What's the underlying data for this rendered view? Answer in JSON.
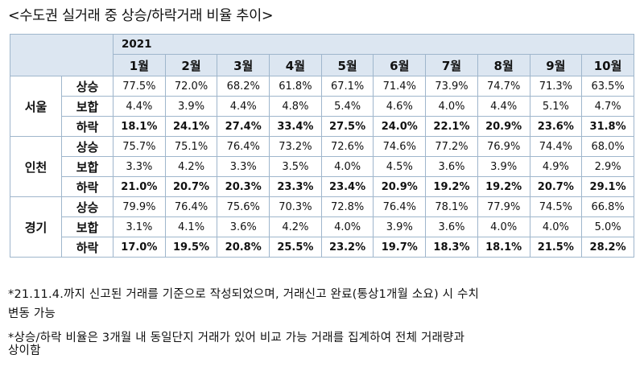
{
  "title": "<수도권 실거래 중 상승/하락거래 비율 추이>",
  "year": "2021",
  "months": [
    "1월",
    "2월",
    "3월",
    "4월",
    "5월",
    "6월",
    "7월",
    "8월",
    "9월",
    "10월"
  ],
  "regions": [
    {
      "name": "서울",
      "rows": [
        {
          "label": "상승",
          "values": [
            "77.5%",
            "72.0%",
            "68.2%",
            "61.8%",
            "67.1%",
            "71.4%",
            "73.9%",
            "74.7%",
            "71.3%",
            "63.5%"
          ]
        },
        {
          "label": "보합",
          "values": [
            "4.4%",
            "3.9%",
            "4.4%",
            "4.8%",
            "5.4%",
            "4.6%",
            "4.0%",
            "4.4%",
            "5.1%",
            "4.7%"
          ]
        },
        {
          "label": "하락",
          "values": [
            "18.1%",
            "24.1%",
            "27.4%",
            "33.4%",
            "27.5%",
            "24.0%",
            "22.1%",
            "20.9%",
            "23.6%",
            "31.8%"
          ]
        }
      ]
    },
    {
      "name": "인천",
      "rows": [
        {
          "label": "상승",
          "values": [
            "75.7%",
            "75.1%",
            "76.4%",
            "73.2%",
            "72.6%",
            "74.6%",
            "77.2%",
            "76.9%",
            "74.4%",
            "68.0%"
          ]
        },
        {
          "label": "보합",
          "values": [
            "3.3%",
            "4.2%",
            "3.3%",
            "3.5%",
            "4.0%",
            "4.5%",
            "3.6%",
            "3.9%",
            "4.9%",
            "2.9%"
          ]
        },
        {
          "label": "하락",
          "values": [
            "21.0%",
            "20.7%",
            "20.3%",
            "23.3%",
            "23.4%",
            "20.9%",
            "19.2%",
            "19.2%",
            "20.7%",
            "29.1%"
          ]
        }
      ]
    },
    {
      "name": "경기",
      "rows": [
        {
          "label": "상승",
          "values": [
            "79.9%",
            "76.4%",
            "75.6%",
            "70.3%",
            "72.8%",
            "76.4%",
            "78.1%",
            "77.9%",
            "74.5%",
            "66.8%"
          ]
        },
        {
          "label": "보합",
          "values": [
            "3.1%",
            "4.1%",
            "3.6%",
            "4.2%",
            "4.0%",
            "3.9%",
            "3.6%",
            "4.0%",
            "4.0%",
            "5.0%"
          ]
        },
        {
          "label": "하락",
          "values": [
            "17.0%",
            "19.5%",
            "20.8%",
            "25.5%",
            "23.2%",
            "19.7%",
            "18.3%",
            "18.1%",
            "21.5%",
            "28.2%"
          ]
        }
      ]
    }
  ],
  "notes": [
    "*21.11.4.까지 신고된 거래를 기준으로 작성되었으며, 거래신고 완료(통상1개월 소요) 시 수치",
    " 변동 가능",
    "*상승/하락 비율은 3개월 내 동일단지 거래가 있어 비교 가능 거래를 집계하여 전체 거래량과",
    "상이함"
  ]
}
